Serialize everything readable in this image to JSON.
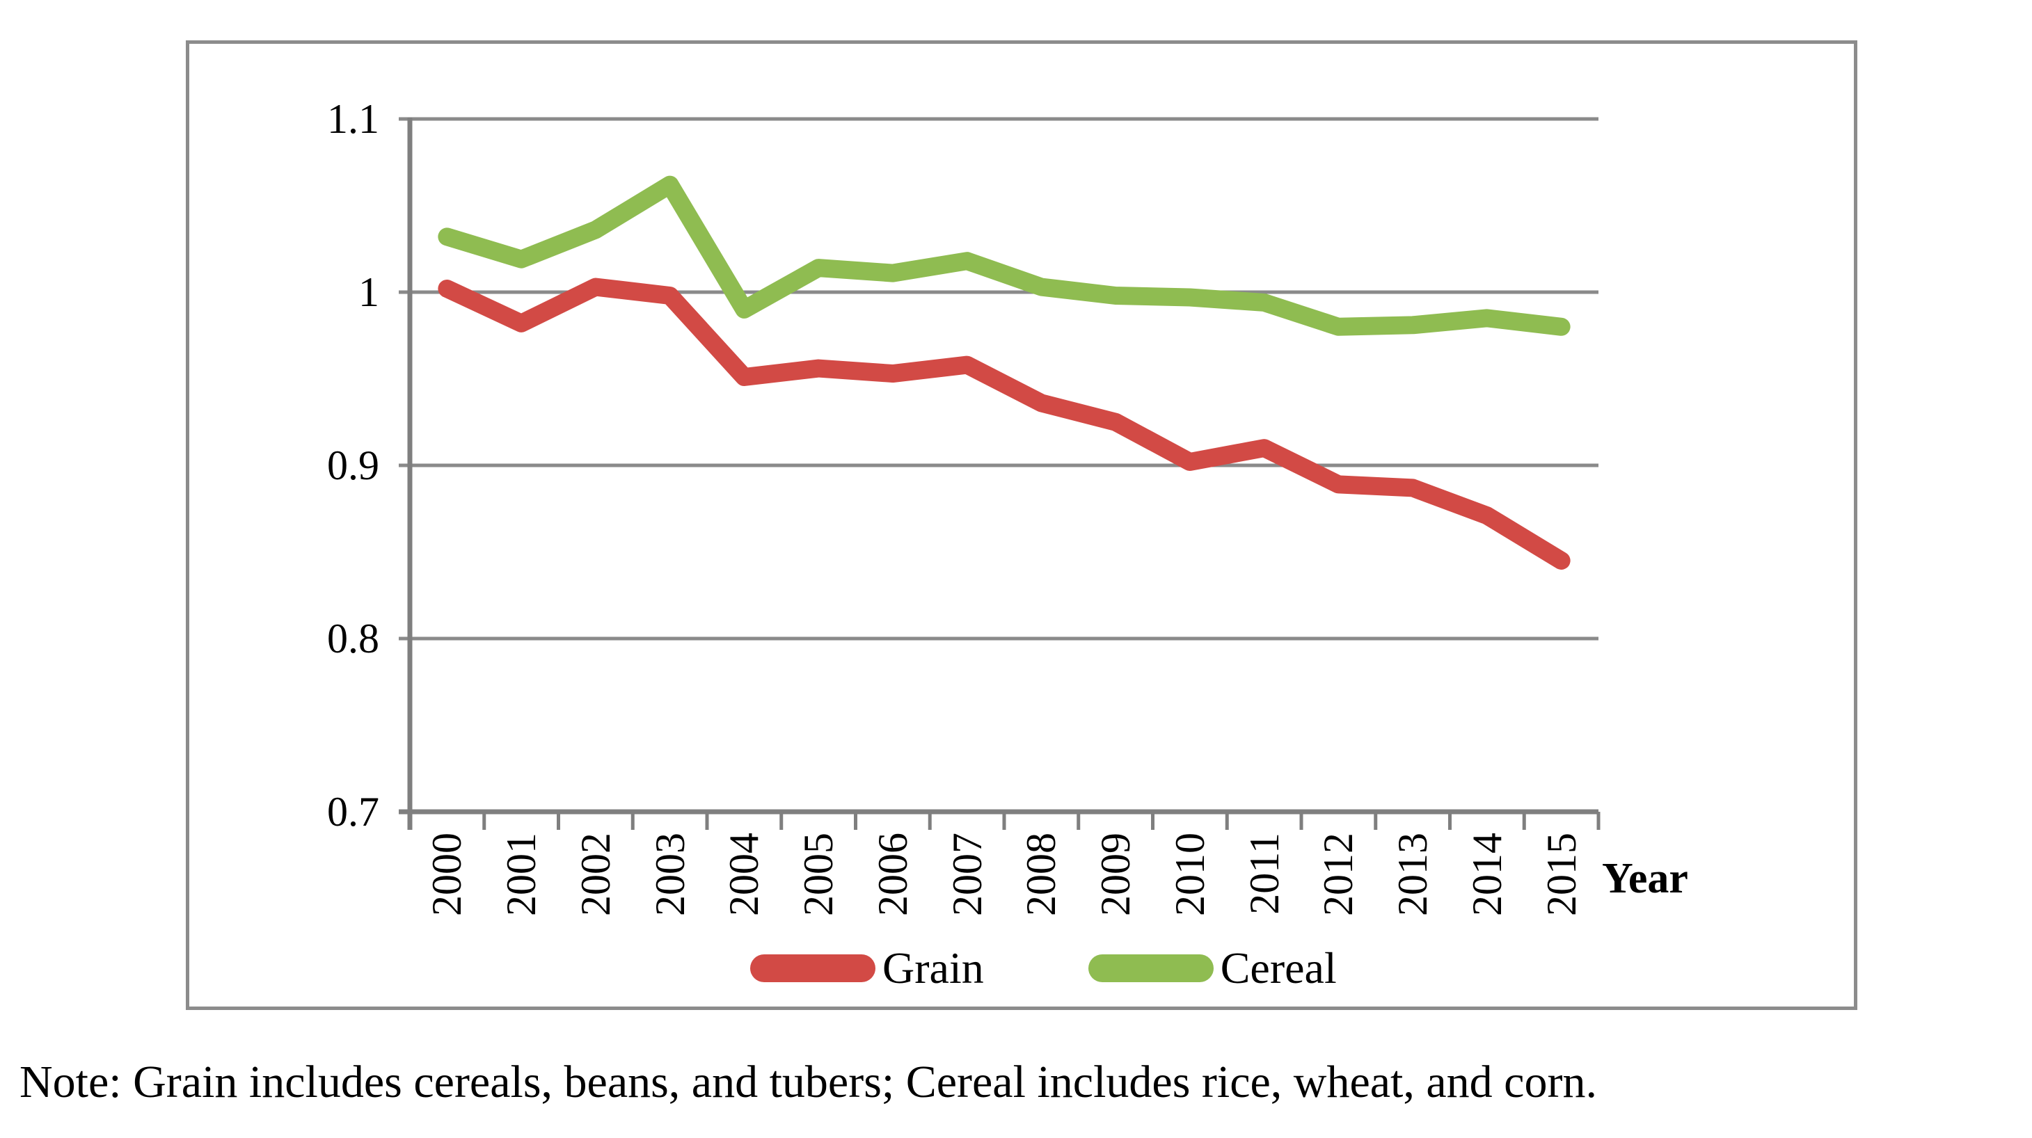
{
  "figure": {
    "x_axis_title": "Year",
    "note": "Note: Grain includes cereals, beans, and tubers; Cereal includes rice, wheat, and corn."
  },
  "chart_data": {
    "type": "line",
    "title": "",
    "xlabel": "Year",
    "ylabel": "",
    "categories": [
      "2000",
      "2001",
      "2002",
      "2003",
      "2004",
      "2005",
      "2006",
      "2007",
      "2008",
      "2009",
      "2010",
      "2011",
      "2012",
      "2013",
      "2014",
      "2015"
    ],
    "series": [
      {
        "name": "Grain",
        "color": "#d24a45",
        "values": [
          1.002,
          0.982,
          1.003,
          0.998,
          0.951,
          0.956,
          0.953,
          0.958,
          0.936,
          0.925,
          0.902,
          0.91,
          0.889,
          0.887,
          0.871,
          0.845
        ]
      },
      {
        "name": "Cereal",
        "color": "#8fbc51",
        "values": [
          1.032,
          1.019,
          1.036,
          1.062,
          0.99,
          1.014,
          1.011,
          1.018,
          1.003,
          0.998,
          0.997,
          0.994,
          0.98,
          0.981,
          0.985,
          0.98
        ]
      }
    ],
    "ylim": [
      0.7,
      1.1
    ],
    "yticks": [
      {
        "label": "1.1",
        "value": 1.1
      },
      {
        "label": "1",
        "value": 1.0
      },
      {
        "label": "0.9",
        "value": 0.9
      },
      {
        "label": "0.8",
        "value": 0.8
      },
      {
        "label": "0.7",
        "value": 0.7
      }
    ],
    "grid": "horizontal",
    "legend_position": "bottom",
    "colors": {
      "gridline": "#8a8a8a",
      "axis": "#7f7f7f",
      "border": "#8c8c8c"
    }
  }
}
